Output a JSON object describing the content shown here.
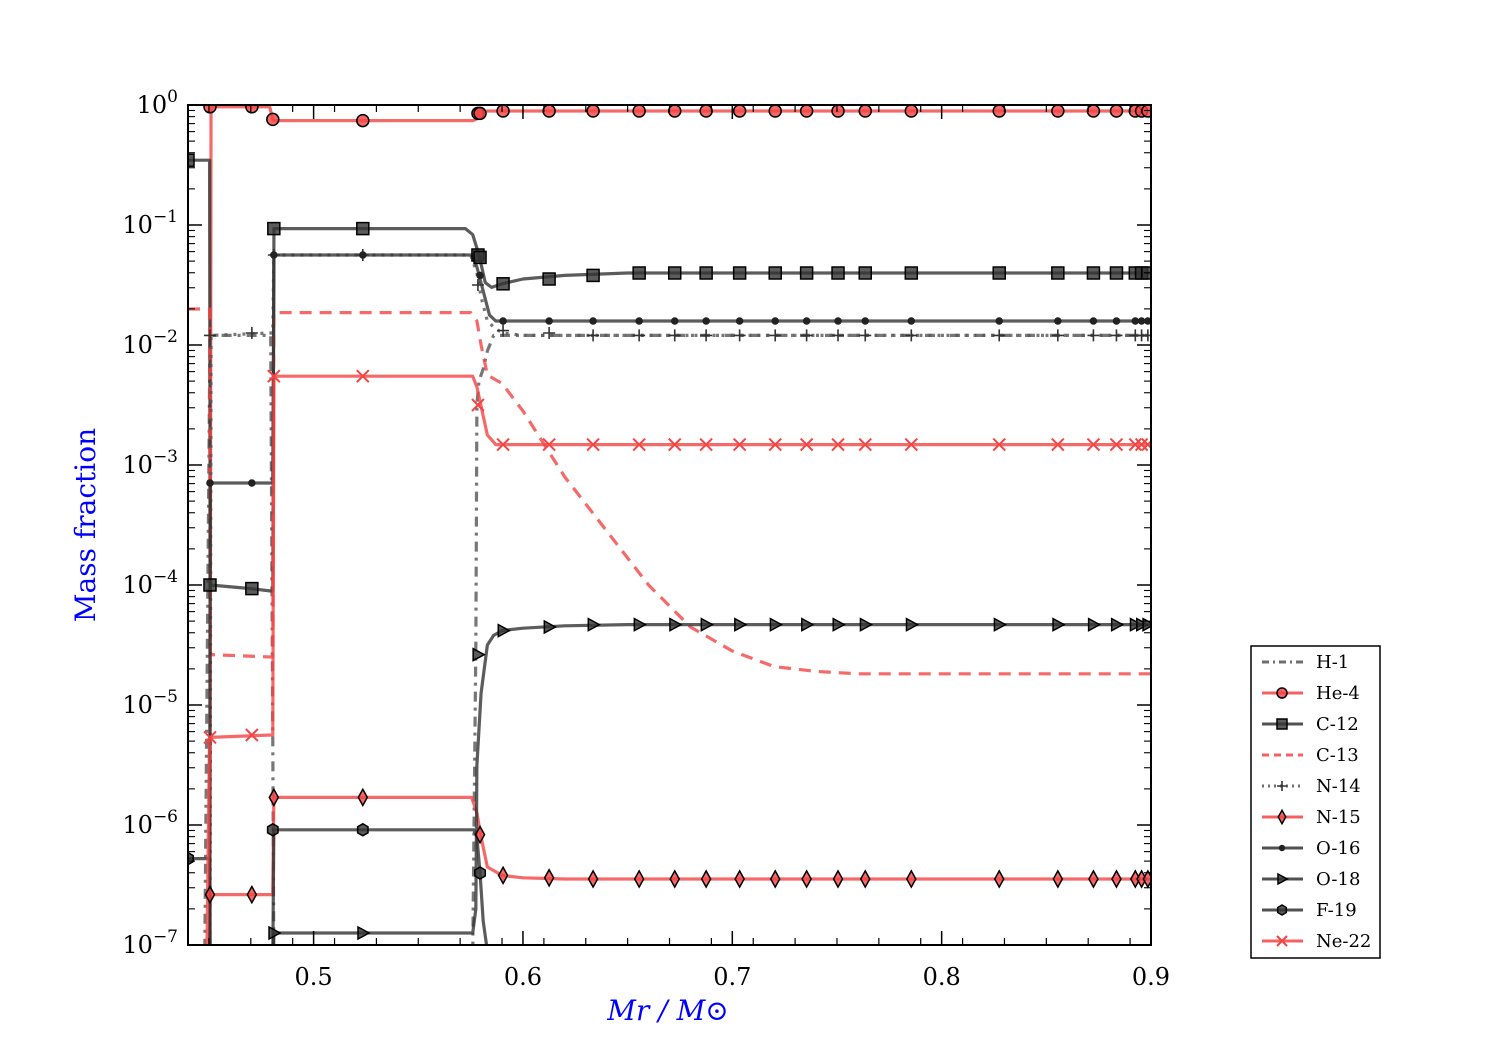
{
  "chart_data": {
    "type": "line",
    "xlabel": "Mr / M⊙",
    "ylabel": "Mass fraction",
    "xlim": [
      0.44,
      0.9
    ],
    "ylim_log10": [
      -7,
      0
    ],
    "y_scale": "log",
    "x_ticks": [
      0.5,
      0.6,
      0.7,
      0.8,
      0.9
    ],
    "x_tick_labels": [
      "0.5",
      "0.6",
      "0.7",
      "0.8",
      "0.9"
    ],
    "y_tick_exponents": [
      "0",
      "−1",
      "−2",
      "−3",
      "−4",
      "−5",
      "−6",
      "−7"
    ],
    "y_tick_base": "10",
    "grid": false,
    "legend_position": "outside-right-bottom",
    "series": [
      {
        "name": "H-1",
        "color": "#555555",
        "dash": "10,6,3,6",
        "marker": "none",
        "x": [
          0.44,
          0.448,
          0.4505,
          0.4515,
          0.47,
          0.4795,
          0.4805,
          0.481,
          0.576,
          0.5775,
          0.578,
          0.579,
          0.58,
          0.581,
          0.583,
          0.586,
          0.59,
          0.9
        ],
        "log10y": [
          -7.1,
          -7.1,
          -1.92,
          -1.92,
          -1.92,
          -1.92,
          -5.3,
          -7.1,
          -7.1,
          -4.5,
          -2.5,
          -2.3,
          -2.25,
          -2.2,
          -2.05,
          -1.92,
          -1.92,
          -1.92
        ]
      },
      {
        "name": "He-4",
        "color": "#f44444",
        "dash": "",
        "marker": "circle",
        "x": [
          0.44,
          0.449,
          0.4505,
          0.451,
          0.479,
          0.4805,
          0.481,
          0.576,
          0.5775,
          0.579,
          0.583,
          0.59,
          0.9
        ],
        "log10y": [
          -7.1,
          -7.1,
          -7.1,
          -0.015,
          -0.015,
          -0.12,
          -0.13,
          -0.13,
          -0.12,
          -0.07,
          -0.05,
          -0.05,
          -0.05
        ],
        "markers_x": [
          0.4505,
          0.4705,
          0.4805,
          0.5235,
          0.5785,
          0.5795,
          0.5905,
          0.6125,
          0.6335,
          0.6555,
          0.6725,
          0.6875,
          0.7035,
          0.7205,
          0.7355,
          0.7505,
          0.7635,
          0.7855,
          0.8275,
          0.8555,
          0.8725,
          0.8835,
          0.8925,
          0.8955,
          0.8985
        ],
        "markers_log10y": [
          -0.015,
          -0.015,
          -0.12,
          -0.13,
          -0.07,
          -0.07,
          -0.05,
          -0.05,
          -0.05,
          -0.05,
          -0.05,
          -0.05,
          -0.05,
          -0.05,
          -0.05,
          -0.05,
          -0.05,
          -0.05,
          -0.05,
          -0.05,
          -0.05,
          -0.05,
          -0.05,
          -0.05,
          -0.05
        ]
      },
      {
        "name": "C-12",
        "color": "#333333",
        "dash": "",
        "marker": "square",
        "x": [
          0.44,
          0.449,
          0.4503,
          0.4506,
          0.47,
          0.4795,
          0.4805,
          0.48105,
          0.5725,
          0.576,
          0.579,
          0.582,
          0.585,
          0.59,
          0.6,
          0.62,
          0.65,
          0.9
        ],
        "log10y": [
          -0.46,
          -0.46,
          -0.46,
          -4.0,
          -4.03,
          -4.05,
          -4.05,
          -1.03,
          -1.03,
          -1.08,
          -1.25,
          -1.48,
          -1.52,
          -1.49,
          -1.45,
          -1.42,
          -1.4,
          -1.4
        ],
        "markers_x": [
          0.44,
          0.4505,
          0.4705,
          0.481,
          0.5235,
          0.5785,
          0.5795,
          0.5905,
          0.6125,
          0.6335,
          0.6555,
          0.6725,
          0.6875,
          0.7035,
          0.7205,
          0.7355,
          0.7505,
          0.7635,
          0.7855,
          0.8275,
          0.8555,
          0.8725,
          0.8835,
          0.8925,
          0.8955,
          0.8985
        ],
        "markers_log10y": [
          -0.46,
          -4.0,
          -4.03,
          -1.03,
          -1.03,
          -1.25,
          -1.27,
          -1.49,
          -1.45,
          -1.42,
          -1.4,
          -1.4,
          -1.4,
          -1.4,
          -1.4,
          -1.4,
          -1.4,
          -1.4,
          -1.4,
          -1.4,
          -1.4,
          -1.4,
          -1.4,
          -1.4,
          -1.4,
          -1.4
        ]
      },
      {
        "name": "C-13",
        "color": "#f44444",
        "dash": "12,8",
        "marker": "none",
        "x": [
          0.44,
          0.449,
          0.4503,
          0.4506,
          0.4795,
          0.4805,
          0.481,
          0.575,
          0.578,
          0.58,
          0.583,
          0.59,
          0.6,
          0.62,
          0.64,
          0.66,
          0.68,
          0.7,
          0.72,
          0.74,
          0.76,
          0.78,
          0.8,
          0.9
        ],
        "log10y": [
          -1.7,
          -1.7,
          -1.7,
          -4.58,
          -4.6,
          -4.6,
          -1.73,
          -1.73,
          -1.8,
          -2.0,
          -2.25,
          -2.32,
          -2.55,
          -3.1,
          -3.55,
          -4.0,
          -4.35,
          -4.55,
          -4.68,
          -4.72,
          -4.74,
          -4.74,
          -4.74,
          -4.74
        ]
      },
      {
        "name": "N-14",
        "color": "#555555",
        "dash": "3,6",
        "marker": "plus",
        "x": [
          0.44,
          0.449,
          0.4505,
          0.451,
          0.479,
          0.4805,
          0.481,
          0.575,
          0.578,
          0.58,
          0.583,
          0.586,
          0.59,
          0.6,
          0.9
        ],
        "log10y": [
          -7.1,
          -7.1,
          -7.1,
          -1.92,
          -1.9,
          -1.9,
          -1.25,
          -1.25,
          -1.4,
          -1.6,
          -1.8,
          -1.85,
          -1.9,
          -1.92,
          -1.92
        ],
        "markers_x": [
          0.4505,
          0.4705,
          0.481,
          0.5235,
          0.5785,
          0.5905,
          0.6125,
          0.6335,
          0.6555,
          0.6725,
          0.6875,
          0.7035,
          0.7205,
          0.7355,
          0.7505,
          0.7635,
          0.7855,
          0.8275,
          0.8555,
          0.8725,
          0.8835,
          0.8925,
          0.8955,
          0.8985
        ],
        "markers_log10y": [
          -1.92,
          -1.9,
          -1.25,
          -1.25,
          -1.5,
          -1.88,
          -1.9,
          -1.92,
          -1.92,
          -1.92,
          -1.92,
          -1.92,
          -1.92,
          -1.92,
          -1.92,
          -1.92,
          -1.92,
          -1.92,
          -1.92,
          -1.92,
          -1.92,
          -1.92,
          -1.92,
          -1.92
        ]
      },
      {
        "name": "N-15",
        "color": "#f44444",
        "dash": "",
        "marker": "diamond",
        "x": [
          0.44,
          0.449,
          0.4503,
          0.4506,
          0.4795,
          0.4805,
          0.481,
          0.5755,
          0.578,
          0.58,
          0.583,
          0.59,
          0.6,
          0.62,
          0.65,
          0.9
        ],
        "log10y": [
          -7.1,
          -7.1,
          -7.1,
          -6.58,
          -6.58,
          -6.58,
          -5.77,
          -5.77,
          -5.9,
          -6.1,
          -6.35,
          -6.42,
          -6.44,
          -6.45,
          -6.45,
          -6.45
        ],
        "markers_x": [
          0.4505,
          0.4705,
          0.481,
          0.5235,
          0.5795,
          0.5905,
          0.6125,
          0.6335,
          0.6555,
          0.6725,
          0.6875,
          0.7035,
          0.7205,
          0.7355,
          0.7505,
          0.7635,
          0.7855,
          0.8275,
          0.8555,
          0.8725,
          0.8835,
          0.8925,
          0.8955,
          0.8985
        ],
        "markers_log10y": [
          -6.58,
          -6.58,
          -5.77,
          -5.77,
          -6.08,
          -6.42,
          -6.44,
          -6.45,
          -6.45,
          -6.45,
          -6.45,
          -6.45,
          -6.45,
          -6.45,
          -6.45,
          -6.45,
          -6.45,
          -6.45,
          -6.45,
          -6.45,
          -6.45,
          -6.45,
          -6.45,
          -6.45
        ]
      },
      {
        "name": "O-16",
        "color": "#333333",
        "dash": "",
        "marker": "dot",
        "x": [
          0.44,
          0.449,
          0.4503,
          0.4506,
          0.4795,
          0.4805,
          0.48105,
          0.576,
          0.578,
          0.581,
          0.584,
          0.587,
          0.59,
          0.9
        ],
        "log10y": [
          -7.1,
          -7.1,
          -7.1,
          -3.15,
          -3.15,
          -3.15,
          -1.25,
          -1.25,
          -1.35,
          -1.55,
          -1.75,
          -1.8,
          -1.8,
          -1.8
        ],
        "markers_x": [
          0.4505,
          0.4705,
          0.481,
          0.5235,
          0.5795,
          0.5905,
          0.6125,
          0.6335,
          0.6555,
          0.6725,
          0.6875,
          0.7035,
          0.7205,
          0.7355,
          0.7505,
          0.7635,
          0.7855,
          0.8275,
          0.8555,
          0.8725,
          0.8835,
          0.8925,
          0.8955,
          0.8985
        ],
        "markers_log10y": [
          -3.15,
          -3.15,
          -1.25,
          -1.25,
          -1.42,
          -1.8,
          -1.8,
          -1.8,
          -1.8,
          -1.8,
          -1.8,
          -1.8,
          -1.8,
          -1.8,
          -1.8,
          -1.8,
          -1.8,
          -1.8,
          -1.8,
          -1.8,
          -1.8,
          -1.8,
          -1.8,
          -1.8
        ]
      },
      {
        "name": "O-18",
        "color": "#333333",
        "dash": "",
        "marker": "triangle-right",
        "x": [
          0.44,
          0.4795,
          0.4805,
          0.481,
          0.576,
          0.5775,
          0.578,
          0.58,
          0.583,
          0.586,
          0.59,
          0.6,
          0.62,
          0.65,
          0.9
        ],
        "log10y": [
          -7.1,
          -7.1,
          -7.1,
          -6.9,
          -6.9,
          -6.7,
          -5.5,
          -4.9,
          -4.5,
          -4.42,
          -4.38,
          -4.36,
          -4.34,
          -4.33,
          -4.33
        ],
        "markers_x": [
          0.481,
          0.5235,
          0.5785,
          0.5905,
          0.6125,
          0.6335,
          0.6555,
          0.6725,
          0.6875,
          0.7035,
          0.7205,
          0.7355,
          0.7505,
          0.7635,
          0.7855,
          0.8275,
          0.8555,
          0.8725,
          0.8835,
          0.8925,
          0.8955,
          0.8985
        ],
        "markers_log10y": [
          -6.9,
          -6.9,
          -4.58,
          -4.38,
          -4.35,
          -4.33,
          -4.33,
          -4.33,
          -4.33,
          -4.33,
          -4.33,
          -4.33,
          -4.33,
          -4.33,
          -4.33,
          -4.33,
          -4.33,
          -4.33,
          -4.33,
          -4.33,
          -4.33,
          -4.33
        ]
      },
      {
        "name": "F-19",
        "color": "#333333",
        "dash": "",
        "marker": "hexagon",
        "x": [
          0.44,
          0.449,
          0.4503,
          0.4506,
          0.4795,
          0.4805,
          0.481,
          0.5765,
          0.578,
          0.5795,
          0.581,
          0.583,
          0.584
        ],
        "log10y": [
          -6.28,
          -6.28,
          -6.28,
          -7.1,
          -7.1,
          -7.1,
          -6.04,
          -6.04,
          -6.1,
          -6.4,
          -6.8,
          -7.05,
          -7.1
        ],
        "markers_x": [
          0.44,
          0.4805,
          0.5235,
          0.5795
        ],
        "markers_log10y": [
          -6.28,
          -6.04,
          -6.04,
          -6.4
        ]
      },
      {
        "name": "Ne-22",
        "color": "#f44444",
        "dash": "",
        "marker": "x",
        "x": [
          0.449,
          0.4503,
          0.4506,
          0.4795,
          0.4805,
          0.48105,
          0.576,
          0.578,
          0.5805,
          0.583,
          0.587,
          0.59,
          0.9
        ],
        "log10y": [
          -7.1,
          -5.27,
          -5.27,
          -5.25,
          -5.25,
          -2.26,
          -2.26,
          -2.35,
          -2.55,
          -2.75,
          -2.83,
          -2.83,
          -2.83
        ],
        "markers_x": [
          0.4505,
          0.4705,
          0.481,
          0.5235,
          0.5785,
          0.5905,
          0.6125,
          0.6335,
          0.6555,
          0.6725,
          0.6875,
          0.7035,
          0.7205,
          0.7355,
          0.7505,
          0.7635,
          0.7855,
          0.8275,
          0.8555,
          0.8725,
          0.8835,
          0.8925,
          0.8955,
          0.8985
        ],
        "markers_log10y": [
          -5.27,
          -5.25,
          -2.26,
          -2.26,
          -2.5,
          -2.83,
          -2.83,
          -2.83,
          -2.83,
          -2.83,
          -2.83,
          -2.83,
          -2.83,
          -2.83,
          -2.83,
          -2.83,
          -2.83,
          -2.83,
          -2.83,
          -2.83,
          -2.83,
          -2.83,
          -2.83,
          -2.83
        ]
      }
    ]
  }
}
